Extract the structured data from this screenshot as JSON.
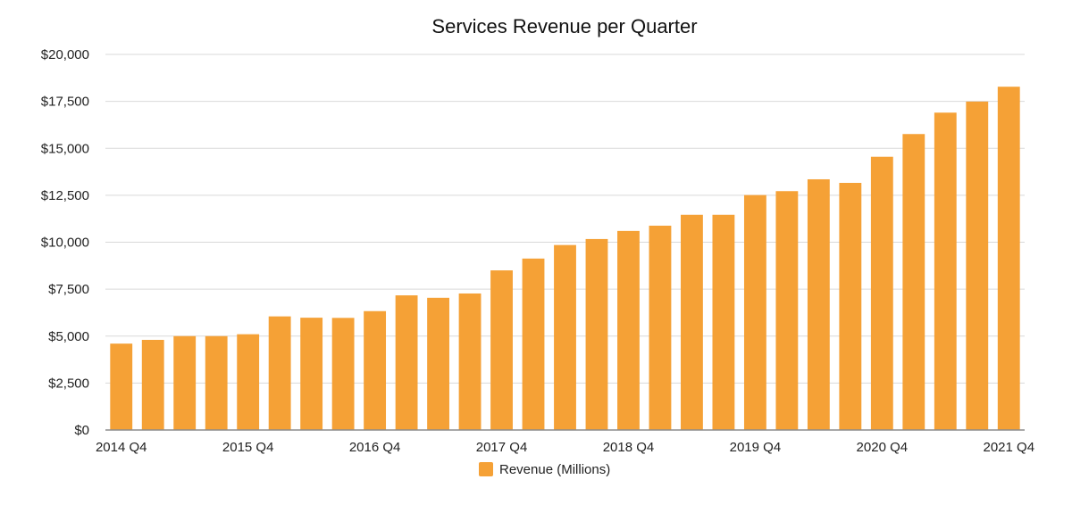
{
  "chart_data": {
    "type": "bar",
    "title": "Services Revenue per Quarter",
    "xlabel": "",
    "ylabel": "",
    "ylim": [
      0,
      20000
    ],
    "grid": true,
    "legend_position": "bottom",
    "bar_color": "#F5A136",
    "grid_color": "#d9d9d9",
    "axis_color": "#8c8c8c",
    "y_ticks": [
      "$0",
      "$2,500",
      "$5,000",
      "$7,500",
      "$10,000",
      "$12,500",
      "$15,000",
      "$17,500",
      "$20,000"
    ],
    "y_tick_values": [
      0,
      2500,
      5000,
      7500,
      10000,
      12500,
      15000,
      17500,
      20000
    ],
    "x_tick_labels": [
      {
        "index": 0,
        "label": "2014 Q4"
      },
      {
        "index": 4,
        "label": "2015 Q4"
      },
      {
        "index": 8,
        "label": "2016 Q4"
      },
      {
        "index": 12,
        "label": "2017 Q4"
      },
      {
        "index": 16,
        "label": "2018 Q4"
      },
      {
        "index": 20,
        "label": "2019 Q4"
      },
      {
        "index": 24,
        "label": "2020 Q4"
      },
      {
        "index": 28,
        "label": "2021 Q4"
      }
    ],
    "series": [
      {
        "name": "Revenue (Millions)",
        "values": [
          4600,
          4800,
          5000,
          5000,
          5100,
          6050,
          5980,
          5970,
          6330,
          7170,
          7040,
          7270,
          8500,
          9130,
          9850,
          10170,
          10600,
          10880,
          11460,
          11460,
          12510,
          12720,
          13350,
          13160,
          14550,
          15760,
          16900,
          17490,
          18280
        ]
      }
    ]
  }
}
